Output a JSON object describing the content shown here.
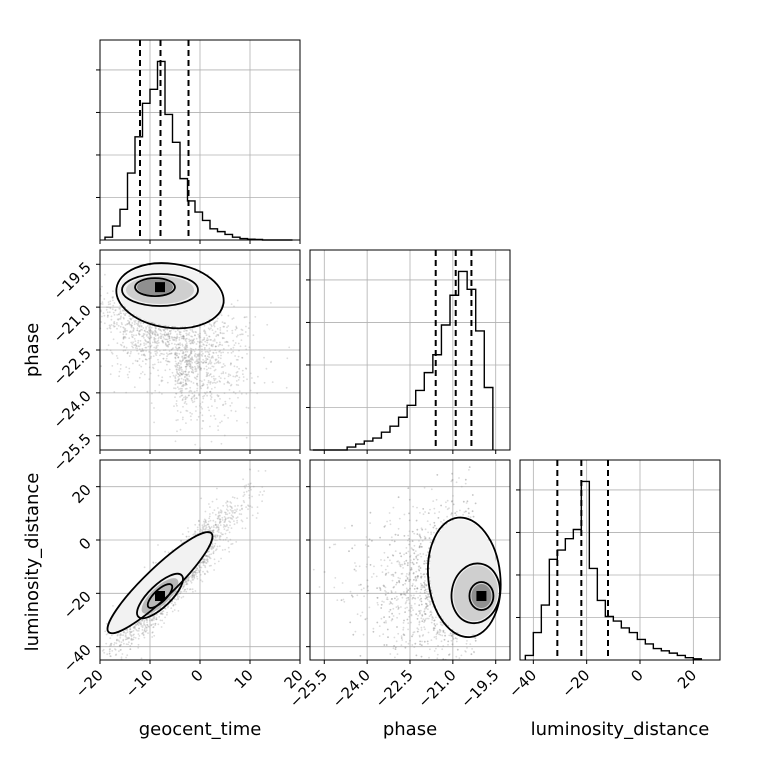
{
  "figure": {
    "colors": {
      "ink": "#000000",
      "grid": "#b0b0b0",
      "scatter": "#9a9a9a"
    }
  },
  "chart_data": [
    {
      "panel": "hist-geocent_time",
      "type": "bar",
      "xlim": [
        -20,
        20
      ],
      "bin_edges": [
        -19,
        -17.5,
        -16,
        -14.5,
        -13,
        -11.5,
        -10,
        -8.5,
        -7,
        -5.5,
        -4,
        -2.5,
        -1,
        0.5,
        2,
        3.5,
        5,
        6.5,
        8,
        9.5,
        11,
        12.5,
        14,
        15.5,
        17,
        18.5
      ],
      "values": [
        1,
        5,
        11,
        24,
        37,
        49,
        54,
        64,
        45,
        35,
        22,
        14,
        10,
        7,
        4,
        3,
        2,
        1,
        0.5,
        0.3,
        0.2,
        0,
        0,
        0,
        0
      ],
      "quantiles": [
        -12,
        -7.9,
        -2.3
      ],
      "grid": true
    },
    {
      "panel": "scatter-geocent_time-phase",
      "type": "scatter",
      "xlabel": "",
      "ylabel": "phase",
      "xlim": [
        -20,
        20
      ],
      "ylim": [
        -26,
        -19
      ],
      "yticks": [
        "-19.5",
        "-21.0",
        "-22.5",
        "-24.0",
        "-25.5"
      ],
      "center": [
        -8,
        -20.3
      ],
      "grid": true
    },
    {
      "panel": "hist-phase",
      "type": "bar",
      "xlim": [
        -26,
        -19
      ],
      "bin_edges": [
        -25.9,
        -25.6,
        -25.3,
        -25.0,
        -24.7,
        -24.4,
        -24.1,
        -23.8,
        -23.5,
        -23.2,
        -22.9,
        -22.6,
        -22.3,
        -22.0,
        -21.7,
        -21.4,
        -21.1,
        -20.8,
        -20.5,
        -20.2,
        -19.9,
        -19.6
      ],
      "values": [
        0,
        0,
        0,
        0,
        1,
        2,
        3,
        4,
        6,
        8,
        11,
        15,
        20,
        26,
        32,
        42,
        52,
        60,
        54,
        40,
        21
      ],
      "quantiles": [
        -21.6,
        -20.9,
        -20.35
      ],
      "grid": true
    },
    {
      "panel": "scatter-geocent_time-luminosity_distance",
      "type": "scatter",
      "xlabel": "geocent_time",
      "ylabel": "luminosity_distance",
      "xlim": [
        -20,
        20
      ],
      "ylim": [
        -45,
        30
      ],
      "xticks": [
        "-20",
        "-10",
        "0",
        "10",
        "20"
      ],
      "yticks": [
        "20",
        "0",
        "-20",
        "-40"
      ],
      "center": [
        -8,
        -21
      ],
      "grid": true
    },
    {
      "panel": "scatter-phase-luminosity_distance",
      "type": "scatter",
      "xlabel": "phase",
      "ylabel": "",
      "xlim": [
        -26,
        -19
      ],
      "ylim": [
        -45,
        30
      ],
      "xticks": [
        "-25.5",
        "-24.0",
        "-22.5",
        "-21.0",
        "-19.5"
      ],
      "center": [
        -20,
        -21
      ],
      "grid": true
    },
    {
      "panel": "hist-luminosity_distance",
      "type": "bar",
      "xlabel": "luminosity_distance",
      "xlim": [
        -45,
        30
      ],
      "xticks": [
        "-40",
        "-20",
        "0",
        "20"
      ],
      "bin_edges": [
        -43,
        -40,
        -37,
        -34,
        -31,
        -28,
        -25,
        -22,
        -19,
        -16,
        -13,
        -10,
        -7,
        -4,
        -1,
        2,
        5,
        8,
        11,
        14,
        17,
        20,
        23
      ],
      "values": [
        2,
        12,
        24,
        44,
        48,
        53,
        57,
        78,
        40,
        26,
        19,
        17,
        14,
        12,
        9,
        7,
        5,
        4,
        3,
        2,
        1,
        0.5
      ],
      "quantiles": [
        -31,
        -22,
        -12
      ],
      "grid": true
    }
  ]
}
